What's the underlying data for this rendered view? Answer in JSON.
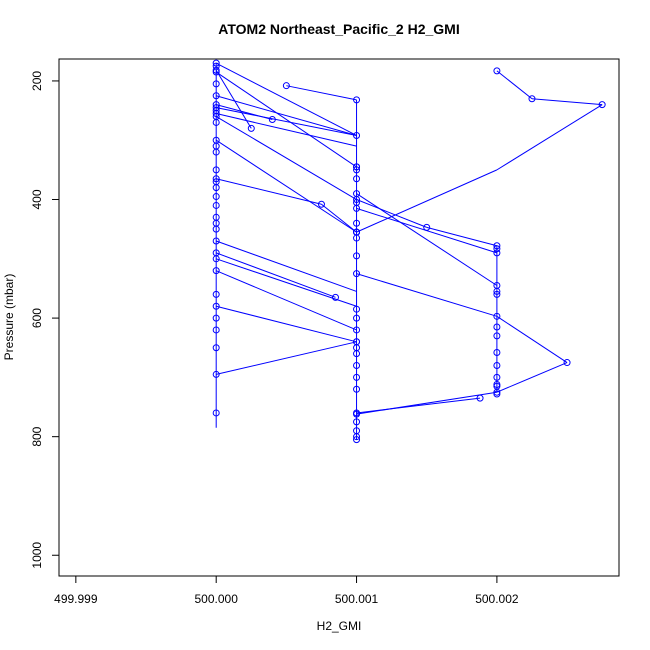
{
  "chart_data": {
    "type": "line",
    "title": "ATOM2 Northeast_Pacific_2 H2_GMI",
    "xlabel": "H2_GMI",
    "ylabel": "Pressure (mbar)",
    "xlim": [
      499.99888,
      500.00287
    ],
    "ylim": [
      1035,
      163
    ],
    "y_reversed": true,
    "x_ticks": [
      499.999,
      500.0,
      500.001,
      500.002
    ],
    "x_tick_labels": [
      "499.999",
      "500.000",
      "500.001",
      "500.002"
    ],
    "y_ticks": [
      200,
      400,
      600,
      800,
      1000
    ],
    "y_tick_labels": [
      "200",
      "400",
      "600",
      "800",
      "1000"
    ],
    "grid": false,
    "legend": "none",
    "marker": "open-circle",
    "colors": {
      "series": "#0000ff",
      "axes": "#000000",
      "background": "#ffffff"
    },
    "series": [
      {
        "values_x": [
          500.0,
          500.0,
          500.0,
          500.0,
          500.0,
          500.0,
          500.0,
          500.0,
          500.0005,
          500.001,
          500.0,
          500.0,
          500.0,
          500.0,
          500.001,
          500.001,
          500.0,
          500.00025,
          500.0,
          500.0,
          500.001,
          500.0004,
          500.0,
          500.0,
          500.0,
          500.0,
          500.001,
          500.001,
          500.001,
          500.0,
          500.0,
          500.001,
          500.0,
          500.0,
          500.0,
          500.00075,
          500.001,
          500.001,
          500.001,
          500.001,
          500.002,
          500.002,
          500.00225,
          500.00275,
          500.002,
          500.001,
          500.001,
          500.0015,
          500.002,
          500.002,
          500.002,
          500.001,
          500.001,
          500.001,
          500.002,
          500.002,
          500.002,
          500.002,
          500.002,
          500.0,
          500.0,
          500.00085,
          500.001,
          500.001,
          500.001,
          500.0,
          500.0,
          500.001,
          500.001,
          500.001,
          500.001,
          500.0,
          500.0,
          500.001,
          500.001,
          500.001,
          500.002,
          500.002,
          500.002,
          500.0025,
          500.002,
          500.002,
          500.002,
          500.00188,
          500.001,
          500.001,
          500.001,
          500.001,
          500.001,
          500.001,
          500.0,
          500.0,
          500.0,
          500.0,
          500.0
        ],
        "values_y": [
          170,
          185,
          205,
          225,
          245,
          255,
          270,
          182,
          208,
          232,
          300,
          320,
          350,
          175,
          292,
          345,
          240,
          280,
          260,
          370,
          400,
          265,
          380,
          395,
          310,
          250,
          345,
          365,
          390,
          365,
          410,
          455,
          430,
          440,
          450,
          408,
          405,
          415,
          440,
          455,
          483,
          490,
          230,
          240,
          183,
          350,
          455,
          447,
          478,
          545,
          555,
          525,
          495,
          465,
          560,
          597,
          615,
          630,
          658,
          470,
          490,
          565,
          585,
          600,
          620,
          500,
          520,
          640,
          680,
          700,
          720,
          580,
          620,
          640,
          650,
          660,
          680,
          700,
          715,
          675,
          725,
          712,
          728,
          735,
          760,
          762,
          775,
          790,
          800,
          805,
          560,
          600,
          650,
          695,
          760
        ]
      }
    ],
    "segments": [
      [
        [
          500.0,
          170
        ],
        [
          500.001,
          292
        ]
      ],
      [
        [
          500.0,
          185
        ],
        [
          500.001,
          345
        ]
      ],
      [
        [
          500.0005,
          208
        ],
        [
          500.001,
          232
        ]
      ],
      [
        [
          500.0,
          225
        ],
        [
          500.001,
          292
        ]
      ],
      [
        [
          500.0,
          245
        ],
        [
          500.001,
          292
        ]
      ],
      [
        [
          500.0,
          255
        ],
        [
          500.001,
          310
        ]
      ],
      [
        [
          500.0,
          182
        ],
        [
          500.00025,
          280
        ]
      ],
      [
        [
          500.0,
          240
        ],
        [
          500.0004,
          265
        ]
      ],
      [
        [
          500.0,
          260
        ],
        [
          500.001,
          400
        ]
      ],
      [
        [
          500.0,
          300
        ],
        [
          500.001,
          455
        ]
      ],
      [
        [
          500.0,
          365
        ],
        [
          500.00075,
          408
        ]
      ],
      [
        [
          500.00075,
          408
        ],
        [
          500.001,
          455
        ]
      ],
      [
        [
          500.002,
          183
        ],
        [
          500.00225,
          230
        ]
      ],
      [
        [
          500.00225,
          230
        ],
        [
          500.00275,
          240
        ]
      ],
      [
        [
          500.00275,
          240
        ],
        [
          500.002,
          350
        ]
      ],
      [
        [
          500.002,
          350
        ],
        [
          500.001,
          455
        ]
      ],
      [
        [
          500.001,
          400
        ],
        [
          500.0015,
          447
        ]
      ],
      [
        [
          500.0015,
          447
        ],
        [
          500.002,
          478
        ]
      ],
      [
        [
          500.001,
          415
        ],
        [
          500.002,
          490
        ]
      ],
      [
        [
          500.001,
          390
        ],
        [
          500.002,
          545
        ]
      ],
      [
        [
          500.001,
          525
        ],
        [
          500.002,
          597
        ]
      ],
      [
        [
          500.002,
          597
        ],
        [
          500.0025,
          675
        ]
      ],
      [
        [
          500.0025,
          675
        ],
        [
          500.002,
          725
        ]
      ],
      [
        [
          500.002,
          725
        ],
        [
          500.001,
          762
        ]
      ],
      [
        [
          500.00188,
          735
        ],
        [
          500.001,
          760
        ]
      ],
      [
        [
          500.0,
          470
        ],
        [
          500.001,
          555
        ]
      ],
      [
        [
          500.0,
          490
        ],
        [
          500.00085,
          565
        ]
      ],
      [
        [
          500.0,
          500
        ],
        [
          500.001,
          580
        ]
      ],
      [
        [
          500.0,
          580
        ],
        [
          500.001,
          640
        ]
      ],
      [
        [
          500.0,
          695
        ],
        [
          500.001,
          640
        ]
      ],
      [
        [
          500.0,
          520
        ],
        [
          500.001,
          620
        ]
      ],
      [
        [
          500.0,
          170
        ],
        [
          500.0,
          785
        ]
      ],
      [
        [
          500.001,
          232
        ],
        [
          500.001,
          805
        ]
      ],
      [
        [
          500.002,
          478
        ],
        [
          500.002,
          725
        ]
      ]
    ]
  }
}
